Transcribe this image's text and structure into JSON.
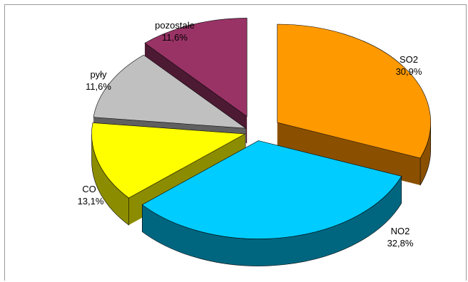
{
  "chart_data": {
    "type": "pie",
    "style": "3d-exploded",
    "title": "",
    "legend": "none",
    "slices": [
      {
        "name": "SO2",
        "value": 30.9,
        "value_label": "30,9%",
        "color": "#FF9900",
        "side_color": "#8A5000"
      },
      {
        "name": "NO2",
        "value": 32.8,
        "value_label": "32,8%",
        "color": "#00CCFF",
        "side_color": "#006680"
      },
      {
        "name": "CO",
        "value": 13.1,
        "value_label": "13,1%",
        "color": "#FFFF00",
        "side_color": "#8C8C00"
      },
      {
        "name": "pyły",
        "value": 11.6,
        "value_label": "11,6%",
        "color": "#C0C0C0",
        "side_color": "#606060"
      },
      {
        "name": "pozostałe",
        "value": 11.6,
        "value_label": "11,6%",
        "color": "#993366",
        "side_color": "#4D1A33"
      }
    ]
  }
}
